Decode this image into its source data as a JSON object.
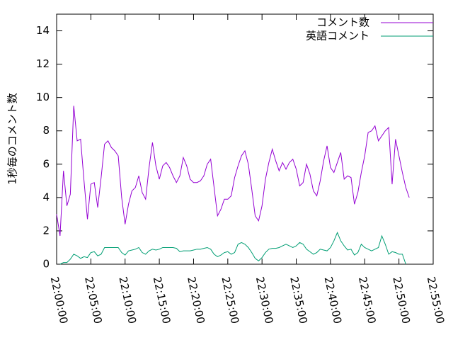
{
  "chart_data": {
    "type": "line",
    "ylabel": "1秒毎のコメント数",
    "x": [
      "22:00:00",
      "22:00:30",
      "22:01:00",
      "22:01:30",
      "22:02:00",
      "22:02:30",
      "22:03:00",
      "22:03:30",
      "22:04:00",
      "22:04:30",
      "22:05:00",
      "22:05:30",
      "22:06:00",
      "22:06:30",
      "22:07:00",
      "22:07:30",
      "22:08:00",
      "22:08:30",
      "22:09:00",
      "22:09:30",
      "22:10:00",
      "22:10:30",
      "22:11:00",
      "22:11:30",
      "22:12:00",
      "22:12:30",
      "22:13:00",
      "22:13:30",
      "22:14:00",
      "22:14:30",
      "22:15:00",
      "22:15:30",
      "22:16:00",
      "22:16:30",
      "22:17:00",
      "22:17:30",
      "22:18:00",
      "22:18:30",
      "22:19:00",
      "22:19:30",
      "22:20:00",
      "22:20:30",
      "22:21:00",
      "22:21:30",
      "22:22:00",
      "22:22:30",
      "22:23:00",
      "22:23:30",
      "22:24:00",
      "22:24:30",
      "22:25:00",
      "22:25:30",
      "22:26:00",
      "22:26:30",
      "22:27:00",
      "22:27:30",
      "22:28:00",
      "22:28:30",
      "22:29:00",
      "22:29:30",
      "22:30:00",
      "22:30:30",
      "22:31:00",
      "22:31:30",
      "22:32:00",
      "22:32:30",
      "22:33:00",
      "22:33:30",
      "22:34:00",
      "22:34:30",
      "22:35:00",
      "22:35:30",
      "22:36:00",
      "22:36:30",
      "22:37:00",
      "22:37:30",
      "22:38:00",
      "22:38:30",
      "22:39:00",
      "22:39:30",
      "22:40:00",
      "22:40:30",
      "22:41:00",
      "22:41:30",
      "22:42:00",
      "22:42:30",
      "22:43:00",
      "22:43:30",
      "22:44:00",
      "22:44:30",
      "22:45:00",
      "22:45:30",
      "22:46:00",
      "22:46:30",
      "22:47:00",
      "22:47:30",
      "22:48:00",
      "22:48:30",
      "22:49:00",
      "22:49:30",
      "22:50:00",
      "22:50:30",
      "22:51:00",
      "22:51:30"
    ],
    "series": [
      {
        "name": "コメント数",
        "color": "#9400d3",
        "values": [
          3.0,
          1.7,
          5.6,
          3.5,
          4.2,
          9.5,
          7.4,
          7.5,
          5.0,
          2.7,
          4.8,
          4.9,
          3.4,
          5.2,
          7.2,
          7.4,
          7.0,
          6.8,
          6.5,
          4.0,
          2.4,
          3.6,
          4.4,
          4.6,
          5.3,
          4.3,
          3.9,
          5.8,
          7.3,
          5.9,
          5.1,
          5.9,
          6.1,
          5.8,
          5.3,
          4.9,
          5.3,
          6.4,
          5.9,
          5.1,
          4.9,
          4.9,
          5.0,
          5.3,
          6.0,
          6.3,
          4.6,
          2.9,
          3.3,
          3.9,
          3.9,
          4.1,
          5.2,
          5.9,
          6.5,
          6.8,
          6.0,
          4.5,
          2.9,
          2.6,
          3.5,
          5.1,
          6.1,
          6.9,
          6.2,
          5.6,
          6.1,
          5.7,
          6.1,
          6.3,
          5.7,
          4.7,
          4.9,
          6.0,
          5.4,
          4.4,
          4.1,
          5.0,
          6.2,
          7.1,
          5.8,
          5.5,
          6.1,
          6.7,
          5.1,
          5.3,
          5.2,
          3.6,
          4.3,
          5.5,
          6.5,
          7.9,
          8.0,
          8.3,
          7.4,
          7.7,
          8.0,
          8.2,
          4.8,
          7.5,
          6.5,
          5.5,
          4.6,
          4.0
        ]
      },
      {
        "name": "英語コメント",
        "color": "#009e73",
        "values": [
          null,
          0.0,
          0.1,
          0.1,
          0.3,
          0.6,
          0.5,
          0.35,
          0.45,
          0.4,
          0.7,
          0.75,
          0.5,
          0.6,
          1.0,
          1.0,
          1.0,
          1.0,
          1.0,
          0.7,
          0.55,
          0.8,
          0.85,
          0.9,
          1.0,
          0.7,
          0.6,
          0.8,
          0.9,
          0.85,
          0.9,
          1.0,
          1.0,
          1.0,
          1.0,
          0.95,
          0.75,
          0.8,
          0.8,
          0.8,
          0.85,
          0.9,
          0.9,
          0.95,
          1.0,
          0.9,
          0.6,
          0.45,
          0.55,
          0.7,
          0.75,
          0.6,
          0.7,
          1.2,
          1.3,
          1.2,
          1.0,
          0.7,
          0.35,
          0.2,
          0.4,
          0.7,
          0.9,
          0.95,
          0.95,
          1.0,
          1.1,
          1.2,
          1.1,
          1.0,
          1.1,
          1.3,
          1.2,
          0.9,
          0.75,
          0.6,
          0.7,
          0.9,
          0.85,
          0.8,
          1.0,
          1.4,
          1.9,
          1.4,
          1.1,
          0.85,
          0.9,
          0.55,
          0.7,
          1.2,
          1.0,
          0.9,
          0.8,
          0.9,
          1.0,
          1.7,
          1.2,
          0.6,
          0.75,
          0.7,
          0.6,
          0.6,
          0.0,
          null
        ]
      }
    ],
    "xlim": [
      "22:00:00",
      "22:55:00"
    ],
    "xticks": [
      "22:00:00",
      "22:05:00",
      "22:10:00",
      "22:15:00",
      "22:20:00",
      "22:25:00",
      "22:30:00",
      "22:35:00",
      "22:40:00",
      "22:45:00",
      "22:50:00",
      "22:55:00"
    ],
    "ylim": [
      0,
      15
    ],
    "yticks": [
      0,
      2,
      4,
      6,
      8,
      10,
      12,
      14
    ],
    "legend": "top-right"
  }
}
